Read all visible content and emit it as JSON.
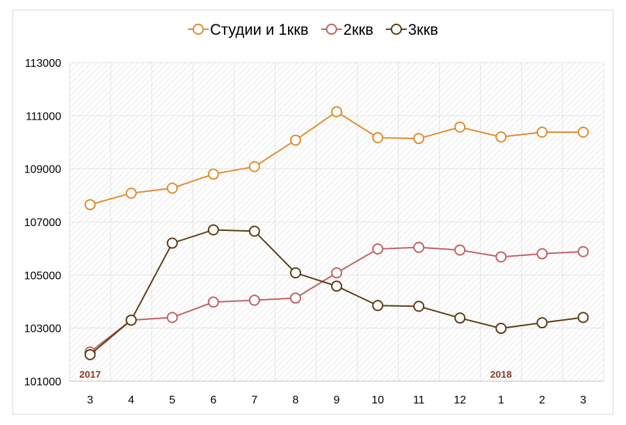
{
  "chart_data": {
    "type": "line",
    "categories": [
      "3",
      "4",
      "5",
      "6",
      "7",
      "8",
      "9",
      "10",
      "11",
      "12",
      "1",
      "2",
      "3"
    ],
    "year_labels": [
      {
        "text": "2017",
        "index": 0
      },
      {
        "text": "2018",
        "index": 10
      }
    ],
    "y_ticks": [
      "101000",
      "103000",
      "105000",
      "107000",
      "109000",
      "111000",
      "113000"
    ],
    "ylim": [
      101000,
      113000
    ],
    "grid": true,
    "legend": "top",
    "series": [
      {
        "name": "Студии и 1ккв",
        "color": "#E08A2E",
        "values": [
          107650,
          108080,
          108270,
          108800,
          109080,
          110080,
          111150,
          110170,
          110140,
          110570,
          110200,
          110380,
          110380
        ]
      },
      {
        "name": "2ккв",
        "color": "#C0605E",
        "values": [
          102100,
          103300,
          103400,
          103980,
          104050,
          104130,
          105080,
          105980,
          106040,
          105940,
          105680,
          105800,
          105880
        ]
      },
      {
        "name": "3ккв",
        "color": "#5C3A10",
        "values": [
          102000,
          103300,
          106200,
          106700,
          106650,
          105080,
          104580,
          103850,
          103820,
          103380,
          102990,
          103200,
          103400
        ]
      }
    ],
    "colors": {
      "year_label": "#8B3A2B",
      "grid": "#e3e3e3",
      "axis": "#bfbfbf"
    }
  }
}
